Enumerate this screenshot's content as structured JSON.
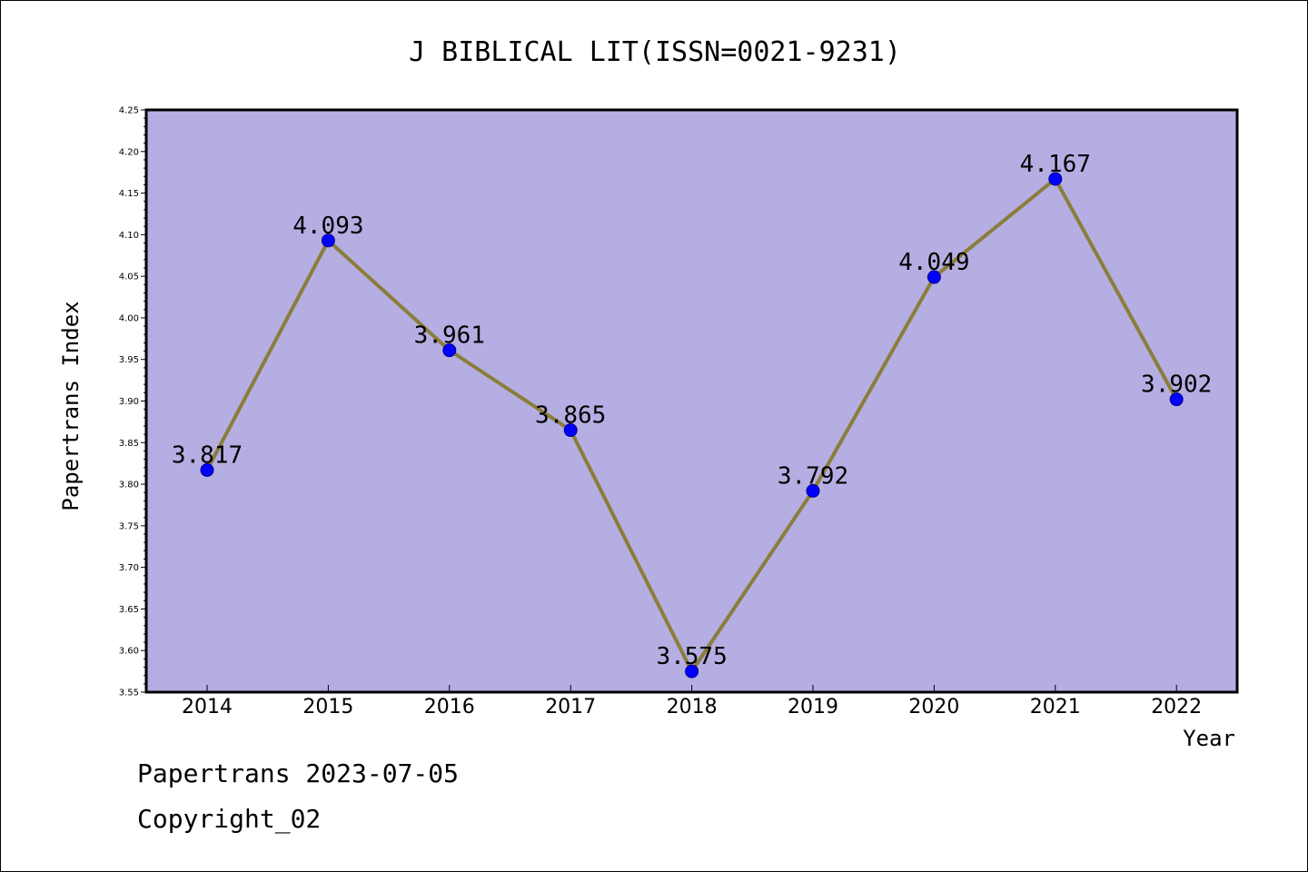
{
  "chart_data": {
    "type": "line",
    "title": "J BIBLICAL LIT(ISSN=0021-9231)",
    "xlabel": "Year",
    "ylabel": "Papertrans Index",
    "categories": [
      "2014",
      "2015",
      "2016",
      "2017",
      "2018",
      "2019",
      "2020",
      "2021",
      "2022"
    ],
    "series": [
      {
        "values": [
          3.817,
          4.093,
          3.961,
          3.865,
          3.575,
          3.792,
          4.049,
          4.167,
          3.902
        ]
      }
    ],
    "data_labels": [
      "3.817",
      "4.093",
      "3.961",
      "3.865",
      "3.575",
      "3.792",
      "4.049",
      "4.167",
      "3.902"
    ],
    "ylim": [
      3.55,
      4.25
    ],
    "yticks": [
      "3.55",
      "3.60",
      "3.65",
      "3.70",
      "3.75",
      "3.80",
      "3.85",
      "3.90",
      "3.95",
      "4.00",
      "4.05",
      "4.10",
      "4.15",
      "4.20",
      "4.25"
    ],
    "grid": false,
    "legend": "none",
    "colors": {
      "plot_background": "#b5aee2",
      "line": "#8b7d3a",
      "marker": "#0000ff",
      "marker_edge": "#00008b"
    }
  },
  "footer": {
    "line1": "Papertrans 2023-07-05",
    "line2": "Copyright_02"
  }
}
